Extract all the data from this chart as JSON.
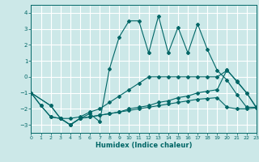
{
  "xlabel": "Humidex (Indice chaleur)",
  "bg_color": "#cce8e8",
  "grid_color": "#ffffff",
  "line_color": "#006666",
  "xlim": [
    0,
    23
  ],
  "ylim": [
    -3.5,
    4.5
  ],
  "yticks": [
    -3,
    -2,
    -1,
    0,
    1,
    2,
    3,
    4
  ],
  "xticks": [
    0,
    1,
    2,
    3,
    4,
    5,
    6,
    7,
    8,
    9,
    10,
    11,
    12,
    13,
    14,
    15,
    16,
    17,
    18,
    19,
    20,
    21,
    22,
    23
  ],
  "line1_x": [
    0,
    1,
    2,
    3,
    4,
    5,
    6,
    7,
    8,
    9,
    10,
    11,
    12,
    13,
    14,
    15,
    16,
    17,
    18,
    19,
    20,
    21,
    22,
    23
  ],
  "line1_y": [
    -1.0,
    -1.8,
    -2.5,
    -2.6,
    -3.0,
    -2.6,
    -2.5,
    -2.4,
    -2.3,
    -2.2,
    -2.1,
    -2.0,
    -1.9,
    -1.8,
    -1.7,
    -1.6,
    -1.5,
    -1.4,
    -1.35,
    -1.3,
    -1.9,
    -2.0,
    -2.0,
    -1.95
  ],
  "line2_x": [
    0,
    1,
    2,
    3,
    4,
    5,
    6,
    7,
    8,
    9,
    10,
    11,
    12,
    13,
    14,
    15,
    16,
    17,
    18,
    19,
    20,
    21,
    22,
    23
  ],
  "line2_y": [
    -1.0,
    -1.8,
    -2.5,
    -2.6,
    -3.0,
    -2.6,
    -2.5,
    -2.4,
    -2.3,
    -2.2,
    -2.0,
    -1.9,
    -1.8,
    -1.6,
    -1.5,
    -1.3,
    -1.2,
    -1.0,
    -0.9,
    -0.8,
    0.45,
    -0.3,
    -1.0,
    -1.95
  ],
  "line3_x": [
    0,
    2,
    3,
    4,
    5,
    6,
    7,
    8,
    9,
    10,
    11,
    12,
    13,
    14,
    15,
    16,
    17,
    18,
    19,
    20,
    21,
    22,
    23
  ],
  "line3_y": [
    -1.0,
    -1.8,
    -2.6,
    -2.6,
    -2.5,
    -2.2,
    -2.0,
    -1.6,
    -1.2,
    -0.8,
    -0.4,
    0.0,
    0.0,
    0.0,
    0.0,
    0.0,
    0.0,
    0.0,
    0.0,
    0.4,
    -0.25,
    -1.0,
    -1.9
  ],
  "line4_x": [
    0,
    2,
    3,
    4,
    5,
    6,
    7,
    8,
    9,
    10,
    11,
    12,
    13,
    14,
    15,
    16,
    17,
    18,
    19,
    20,
    21,
    22,
    23
  ],
  "line4_y": [
    -1.0,
    -1.8,
    -2.6,
    -3.0,
    -2.6,
    -2.3,
    -2.8,
    0.5,
    2.5,
    3.5,
    3.5,
    1.5,
    3.8,
    1.5,
    3.1,
    1.5,
    3.3,
    1.7,
    0.4,
    -0.2,
    -1.1,
    -1.9,
    -1.9
  ]
}
